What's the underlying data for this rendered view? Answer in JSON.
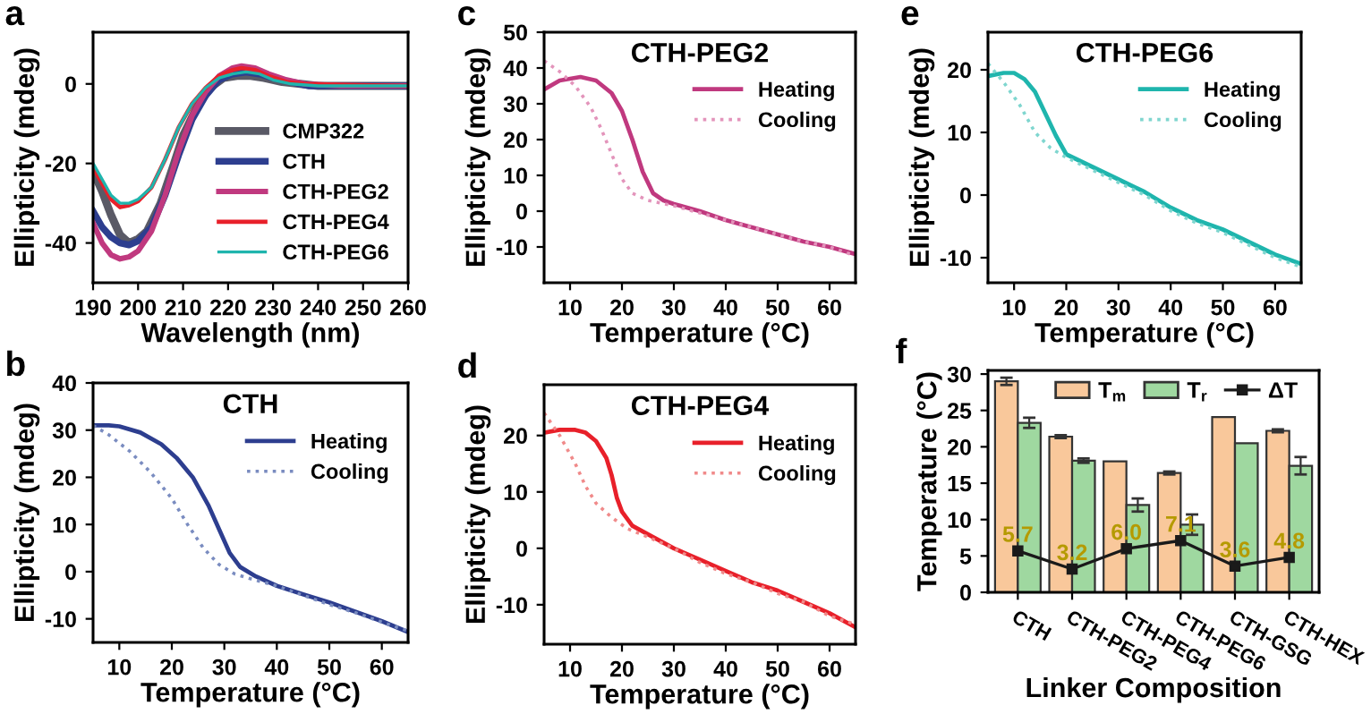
{
  "chart_data": [
    {
      "type": "line",
      "annotations": [
        "a"
      ],
      "xlabel": "Wavelength (nm)",
      "ylabel": "Ellipticity (mdeg)",
      "xlim": [
        190,
        260
      ],
      "ylim": [
        -50,
        13
      ],
      "xticks": [
        190,
        200,
        210,
        220,
        230,
        240,
        250,
        260
      ],
      "yticks": [
        -40,
        -20,
        0
      ],
      "legend": "bottom right",
      "series": [
        {
          "name": "CMP322",
          "color": "#5a5a66",
          "x": [
            190,
            192,
            194,
            196,
            198,
            200,
            202,
            205,
            208,
            210,
            213,
            216,
            219,
            222,
            225,
            228,
            232,
            236,
            240,
            250,
            260
          ],
          "values": [
            -22,
            -27,
            -33,
            -38,
            -40,
            -39,
            -37,
            -30,
            -20,
            -13,
            -6,
            -1,
            1.5,
            2,
            2,
            1.5,
            0.5,
            0,
            -0.5,
            -0.5,
            -0.5
          ]
        },
        {
          "name": "CTH",
          "color": "#2d3e8f",
          "x": [
            190,
            192,
            194,
            196,
            198,
            200,
            203,
            206,
            209,
            212,
            215,
            218,
            221,
            224,
            227,
            230,
            234,
            238,
            245,
            260
          ],
          "values": [
            -32,
            -36,
            -38.5,
            -40,
            -40.5,
            -39.5,
            -36,
            -28,
            -18,
            -9,
            -3,
            1,
            2.5,
            3,
            2.5,
            1.5,
            0.5,
            -0.5,
            -0.5,
            -0.5
          ]
        },
        {
          "name": "CTH-PEG2",
          "color": "#c0397f",
          "x": [
            190,
            192,
            194,
            196,
            198,
            200,
            203,
            206,
            209,
            212,
            215,
            218,
            221,
            223,
            226,
            229,
            233,
            237,
            245,
            260
          ],
          "values": [
            -35,
            -40,
            -43,
            -44,
            -43.5,
            -42,
            -37,
            -28,
            -17,
            -8,
            -2,
            2,
            4,
            4.5,
            4,
            2.5,
            1,
            0,
            -0.5,
            -0.5
          ]
        },
        {
          "name": "CTH-PEG4",
          "color": "#e8202a",
          "x": [
            190,
            192,
            194,
            196,
            198,
            200,
            203,
            206,
            209,
            212,
            215,
            218,
            221,
            223,
            226,
            229,
            233,
            237,
            260
          ],
          "values": [
            -21,
            -25,
            -29,
            -31,
            -30.5,
            -29.5,
            -26,
            -19,
            -11,
            -5,
            -1,
            2,
            3.5,
            4,
            3.5,
            2,
            0.5,
            0,
            -0.5
          ]
        },
        {
          "name": "CTH-PEG6",
          "color": "#1fb5ad",
          "x": [
            190,
            192,
            194,
            196,
            198,
            200,
            203,
            206,
            209,
            212,
            215,
            218,
            221,
            224,
            227,
            230,
            234,
            240,
            260
          ],
          "values": [
            -20,
            -24,
            -28,
            -30,
            -30,
            -29,
            -26,
            -19,
            -11,
            -5,
            -1,
            1.5,
            2.5,
            3,
            2.5,
            1,
            0,
            -0.5,
            -0.5
          ]
        }
      ]
    },
    {
      "type": "line",
      "title": "CTH",
      "annotations": [
        "b"
      ],
      "xlabel": "Temperature (°C)",
      "ylabel": "Ellipticity (mdeg)",
      "xlim": [
        5,
        65
      ],
      "ylim": [
        -15,
        40
      ],
      "xticks": [
        10,
        20,
        30,
        40,
        50,
        60
      ],
      "yticks": [
        -10,
        0,
        10,
        20,
        30,
        40
      ],
      "legend": "top right",
      "series": [
        {
          "name": "Heating",
          "color": "#2d3e8f",
          "line_style": "solid",
          "x": [
            5,
            8,
            10,
            14,
            18,
            21,
            24,
            27,
            29,
            31,
            33,
            36,
            40,
            45,
            50,
            55,
            60,
            65
          ],
          "values": [
            31,
            31,
            30.8,
            29.5,
            27,
            24,
            20,
            14,
            9,
            4,
            1,
            -1,
            -3,
            -4.8,
            -6.5,
            -8.5,
            -10.5,
            -12.8
          ]
        },
        {
          "name": "Cooling",
          "color": "#7a8cc0",
          "line_style": "dotted",
          "x": [
            5,
            8,
            12,
            16,
            20,
            23,
            26,
            29,
            32,
            35,
            40,
            45,
            50,
            55,
            60,
            65
          ],
          "values": [
            31,
            29,
            25.5,
            21,
            15.5,
            10,
            5,
            1.5,
            -0.5,
            -1.5,
            -3,
            -5,
            -7,
            -8.7,
            -10.7,
            -12.6
          ]
        }
      ]
    },
    {
      "type": "line",
      "title": "CTH-PEG2",
      "annotations": [
        "c"
      ],
      "xlabel": "Temperature (°C)",
      "ylabel": "Ellipticity (mdeg)",
      "xlim": [
        5,
        65
      ],
      "ylim": [
        -20,
        50
      ],
      "xticks": [
        10,
        20,
        30,
        40,
        50,
        60
      ],
      "yticks": [
        -10,
        0,
        10,
        20,
        30,
        40,
        50
      ],
      "legend": "top right",
      "series": [
        {
          "name": "Heating",
          "color": "#c0397f",
          "line_style": "solid",
          "x": [
            5,
            8,
            12,
            15,
            18,
            20,
            22,
            24,
            26,
            28,
            30,
            35,
            40,
            45,
            50,
            55,
            60,
            65
          ],
          "values": [
            34,
            36.5,
            37.5,
            36.5,
            33,
            28,
            20,
            11,
            5,
            3,
            2,
            0,
            -2.5,
            -4.5,
            -6.5,
            -8.5,
            -10,
            -12
          ]
        },
        {
          "name": "Cooling",
          "color": "#e394bb",
          "line_style": "dotted",
          "x": [
            5,
            8,
            11,
            14,
            16,
            18,
            20,
            22,
            25,
            30,
            35,
            40,
            45,
            50,
            55,
            60,
            65
          ],
          "values": [
            42,
            39,
            35,
            29,
            23,
            16,
            9,
            5,
            3,
            1.5,
            -0.5,
            -2.5,
            -4.5,
            -6.5,
            -8.5,
            -10,
            -12.5
          ]
        }
      ]
    },
    {
      "type": "line",
      "title": "CTH-PEG4",
      "annotations": [
        "d"
      ],
      "xlabel": "Temperature (°C)",
      "ylabel": "Ellipticity (mdeg)",
      "xlim": [
        5,
        65
      ],
      "ylim": [
        -17,
        29
      ],
      "xticks": [
        10,
        20,
        30,
        40,
        50,
        60
      ],
      "yticks": [
        -10,
        0,
        10,
        20
      ],
      "legend": "top right",
      "series": [
        {
          "name": "Heating",
          "color": "#e8202a",
          "line_style": "solid",
          "x": [
            5,
            8,
            11,
            13,
            15,
            17,
            18,
            19,
            20,
            22,
            25,
            30,
            35,
            40,
            45,
            50,
            55,
            60,
            65
          ],
          "values": [
            20.5,
            21,
            21,
            20.5,
            19,
            16,
            13,
            9,
            6.5,
            4,
            2.5,
            0,
            -2,
            -4,
            -6,
            -7.5,
            -9.5,
            -11.5,
            -14
          ]
        },
        {
          "name": "Cooling",
          "color": "#f08a8a",
          "line_style": "dotted",
          "x": [
            5,
            8,
            11,
            13,
            15,
            18,
            21,
            25,
            30,
            35,
            40,
            45,
            50,
            55,
            60,
            65
          ],
          "values": [
            24,
            20,
            15,
            11,
            8,
            5.5,
            3.5,
            2,
            0,
            -2.5,
            -4.5,
            -6,
            -8,
            -9.5,
            -12,
            -13.5
          ]
        }
      ]
    },
    {
      "type": "line",
      "title": "CTH-PEG6",
      "annotations": [
        "e"
      ],
      "xlabel": "Temperature (°C)",
      "ylabel": "Ellipticity (mdeg)",
      "xlim": [
        5,
        65
      ],
      "ylim": [
        -14,
        26
      ],
      "xticks": [
        10,
        20,
        30,
        40,
        50,
        60
      ],
      "yticks": [
        -10,
        0,
        10,
        20
      ],
      "legend": "top right",
      "series": [
        {
          "name": "Heating",
          "color": "#1fb5ad",
          "line_style": "solid",
          "x": [
            5,
            8,
            10,
            12,
            14,
            16,
            18,
            20,
            25,
            30,
            35,
            40,
            45,
            50,
            55,
            60,
            65
          ],
          "values": [
            19,
            19.5,
            19.5,
            18.5,
            16.5,
            13,
            9.5,
            6.5,
            4.5,
            2.5,
            0.5,
            -2,
            -4,
            -5.5,
            -7.5,
            -9.5,
            -11
          ]
        },
        {
          "name": "Cooling",
          "color": "#7fd6cf",
          "line_style": "dotted",
          "x": [
            5,
            8,
            11,
            14,
            17,
            20,
            25,
            30,
            35,
            40,
            45,
            50,
            55,
            60,
            65
          ],
          "values": [
            21,
            18,
            14.5,
            10,
            7.5,
            6,
            4,
            2,
            0,
            -2.5,
            -4.5,
            -6,
            -8,
            -10,
            -11.5
          ]
        }
      ]
    },
    {
      "type": "bar",
      "annotations": [
        "f"
      ],
      "xlabel": "Linker Composition",
      "ylabel": "Temperature (°C)",
      "ylim": [
        0,
        30.5
      ],
      "yticks": [
        0,
        5,
        10,
        15,
        20,
        25,
        30
      ],
      "legend": "top",
      "categories": [
        "CTH",
        "CTH-PEG2",
        "CTH-PEG4",
        "CTH-PEG6",
        "CTH-GSG",
        "CTH-HEX"
      ],
      "series": [
        {
          "name": "T$_{m}$",
          "type": "bar",
          "color": "#f9c89b",
          "values": [
            29.0,
            21.4,
            18.0,
            16.4,
            24.1,
            22.2
          ],
          "errors": [
            0.5,
            0.2,
            null,
            0.2,
            null,
            0.2
          ]
        },
        {
          "name": "T$_{r}$",
          "type": "bar",
          "color": "#9fd8a0",
          "values": [
            23.3,
            18.1,
            12.0,
            9.3,
            20.5,
            17.4
          ],
          "errors": [
            0.7,
            0.3,
            0.9,
            1.4,
            null,
            1.2
          ]
        },
        {
          "name": "ΔT",
          "type": "line",
          "color": "#1a1a1a",
          "marker": "square",
          "values": [
            5.7,
            3.2,
            6.0,
            7.1,
            3.6,
            4.8
          ],
          "value_labels": [
            "5.7",
            "3.2",
            "6.0",
            "7.1",
            "3.6",
            "4.8"
          ]
        }
      ]
    }
  ]
}
